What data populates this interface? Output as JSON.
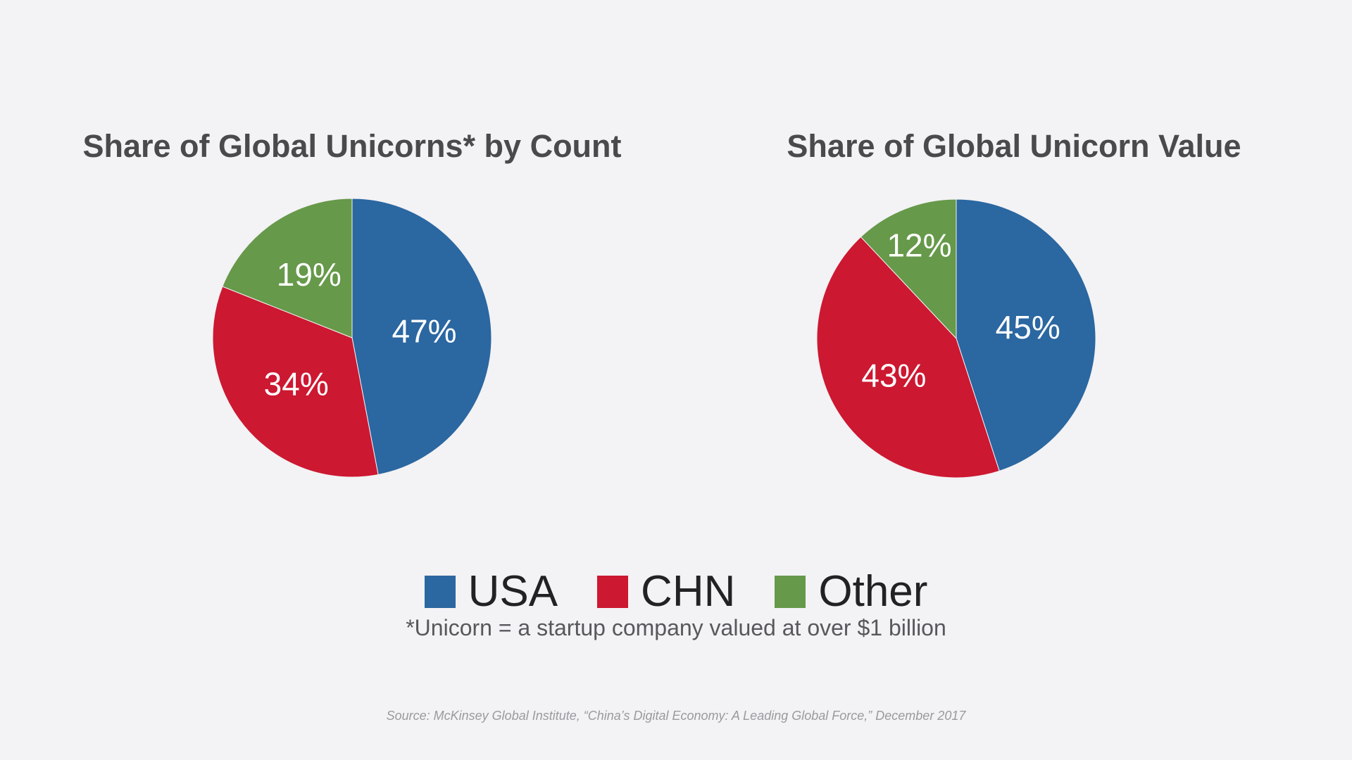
{
  "chart_data": [
    {
      "type": "pie",
      "title": "Share of Global Unicorns* by Count",
      "labels": [
        "USA",
        "CHN",
        "Other"
      ],
      "values": [
        47,
        34,
        19
      ],
      "display_labels": [
        "47%",
        "34%",
        "19%"
      ],
      "colors": [
        "#2b67a1",
        "#cc1831",
        "#66994a"
      ]
    },
    {
      "type": "pie",
      "title": "Share of Global Unicorn Value",
      "labels": [
        "USA",
        "CHN",
        "Other"
      ],
      "values": [
        45,
        43,
        12
      ],
      "display_labels": [
        "45%",
        "43%",
        "12%"
      ],
      "colors": [
        "#2b67a1",
        "#cc1831",
        "#66994a"
      ]
    }
  ],
  "legend": {
    "placement": "bottom-center",
    "items": [
      {
        "label": "USA",
        "color": "#2b67a1"
      },
      {
        "label": "CHN",
        "color": "#cc1831"
      },
      {
        "label": "Other",
        "color": "#66994a"
      }
    ]
  },
  "footnote": "*Unicorn = a startup company valued at over $1 billion",
  "source": "Source: McKinsey Global Institute, “China’s Digital Economy: A Leading Global Force,” December 2017"
}
